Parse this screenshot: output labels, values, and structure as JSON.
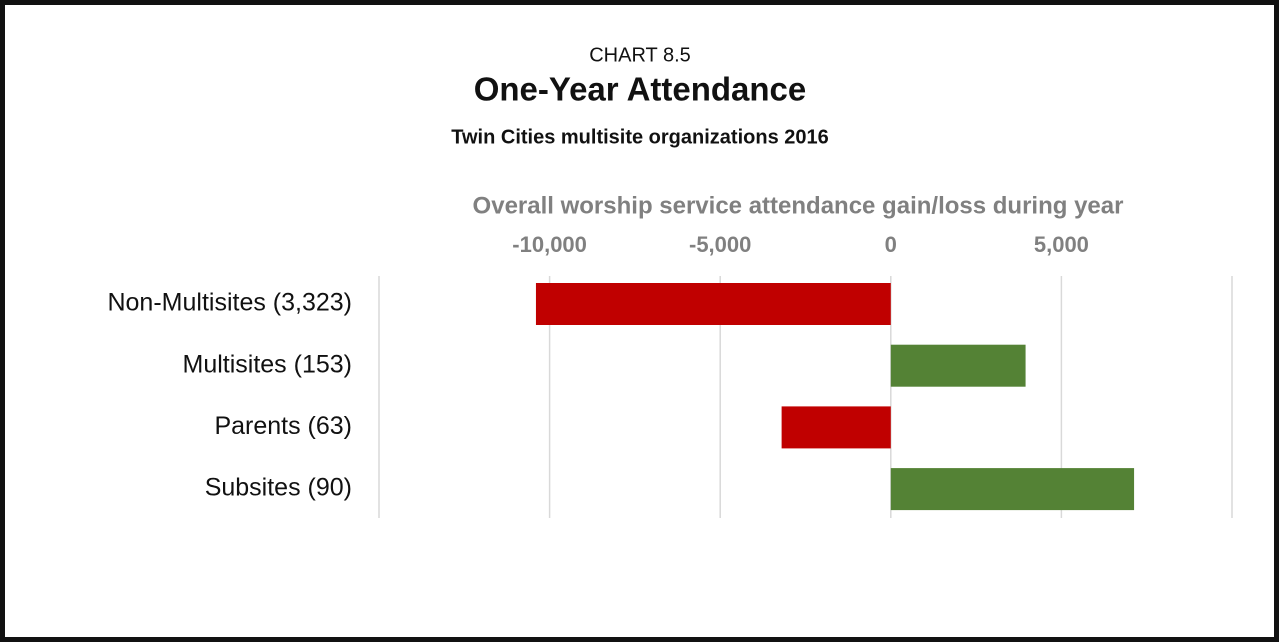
{
  "chart_data": {
    "type": "barh",
    "label": "CHART 8.5",
    "title": "One-Year Attendance",
    "subtitle": "Twin Cities multisite organizations 2016",
    "x_label": "Overall worship service attendance gain/loss during year",
    "categories": [
      "Non-Multisites (3,323)",
      "Multisites (153)",
      "Parents (63)",
      "Subsites (90)"
    ],
    "values": [
      -10400,
      3950,
      -3200,
      7130
    ],
    "colors": [
      "#c00000",
      "#548235",
      "#c00000",
      "#548235"
    ],
    "xlim": [
      -15000,
      10000
    ],
    "xticks": [
      {
        "value": -10000,
        "label": "-10,000"
      },
      {
        "value": -5000,
        "label": "-5,000"
      },
      0,
      {
        "value": 5000,
        "label": "5,000"
      }
    ],
    "grid": true
  }
}
